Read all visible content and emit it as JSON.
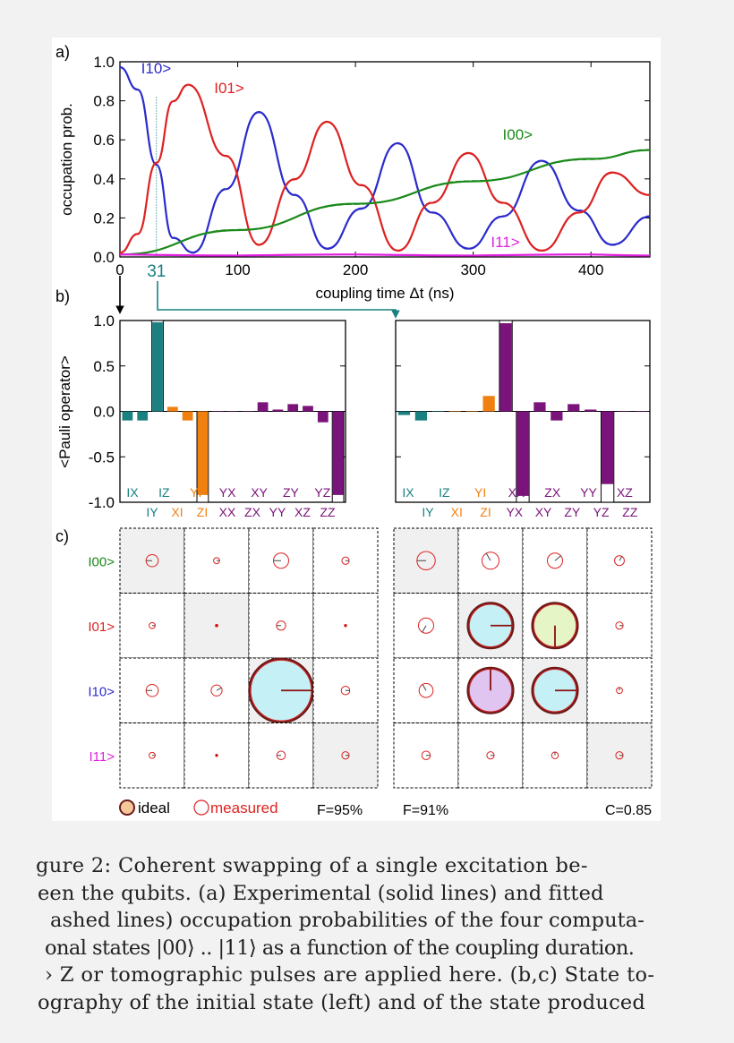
{
  "figure": {
    "panel_a": {
      "label": "a)",
      "chart_data": {
        "type": "line",
        "xlabel": "coupling time Δt (ns)",
        "ylabel": "occupation prob.",
        "xlim": [
          0,
          450
        ],
        "ylim": [
          0,
          1.0
        ],
        "xticks": [
          "0",
          "100",
          "200",
          "300",
          "400"
        ],
        "yticks": [
          "0.0",
          "0.2",
          "0.4",
          "0.6",
          "0.8",
          "1.0"
        ],
        "marker": {
          "x": 31,
          "label": "31"
        },
        "series": [
          {
            "name": "I10>",
            "color": "#2b2bcc",
            "style": "solid+dashed",
            "label_pos": [
              18,
              0.94
            ],
            "x": [
              0,
              15,
              31,
              45,
              62,
              90,
              118,
              148,
              176,
              205,
              236,
              265,
              296,
              325,
              358,
              390,
              418,
              450
            ],
            "y": [
              0.97,
              0.86,
              0.47,
              0.1,
              0.02,
              0.35,
              0.74,
              0.32,
              0.04,
              0.25,
              0.58,
              0.23,
              0.04,
              0.21,
              0.49,
              0.24,
              0.06,
              0.21
            ]
          },
          {
            "name": "I01>",
            "color": "#dd2222",
            "style": "solid+dashed",
            "label_pos": [
              80,
              0.84
            ],
            "x": [
              0,
              15,
              31,
              45,
              58,
              90,
              118,
              148,
              176,
              205,
              236,
              265,
              296,
              325,
              358,
              390,
              418,
              450
            ],
            "y": [
              0.02,
              0.12,
              0.48,
              0.8,
              0.88,
              0.52,
              0.06,
              0.4,
              0.69,
              0.37,
              0.03,
              0.28,
              0.53,
              0.28,
              0.03,
              0.23,
              0.43,
              0.32
            ]
          },
          {
            "name": "I00>",
            "color": "#1a8a1a",
            "style": "solid+dashed",
            "label_pos": [
              325,
              0.6
            ],
            "x": [
              0,
              100,
              200,
              300,
              400,
              450
            ],
            "y": [
              0.01,
              0.14,
              0.27,
              0.39,
              0.5,
              0.55
            ]
          },
          {
            "name": "I11>",
            "color": "#e020e0",
            "style": "solid",
            "label_pos": [
              315,
              0.05
            ],
            "x": [
              0,
              100,
              200,
              300,
              400,
              450
            ],
            "y": [
              0.01,
              0.01,
              0.01,
              0.01,
              0.01,
              0.01
            ]
          }
        ]
      }
    },
    "panel_b": {
      "label": "b)",
      "chart_data": [
        {
          "type": "bar",
          "ylabel": "<Pauli operator>",
          "ylim": [
            -1.0,
            1.0
          ],
          "yticks": [
            "1.0",
            "0.5",
            "0.0",
            "-0.5",
            "-1.0"
          ],
          "categories": [
            "IX",
            "IY",
            "IZ",
            "XI",
            "YI",
            "ZI",
            "XX",
            "XY",
            "XZ",
            "YX",
            "YY",
            "YZ",
            "ZX",
            "ZY",
            "ZZ"
          ],
          "values": [
            -0.1,
            -0.1,
            0.98,
            0.05,
            -0.1,
            -0.92,
            0.0,
            0.0,
            0.0,
            0.1,
            0.02,
            0.08,
            0.06,
            -0.12,
            -0.92
          ],
          "ideal": [
            0,
            0,
            1,
            0,
            0,
            -1,
            0,
            0,
            0,
            0,
            0,
            0,
            0,
            0,
            -1
          ],
          "colors": [
            "#1a8080",
            "#1a8080",
            "#1a8080",
            "#f08010",
            "#f08010",
            "#f08010",
            "#7a137a",
            "#7a137a",
            "#7a137a",
            "#7a137a",
            "#7a137a",
            "#7a137a",
            "#7a137a",
            "#7a137a",
            "#7a137a"
          ]
        },
        {
          "type": "bar",
          "ylim": [
            -1.0,
            1.0
          ],
          "categories": [
            "IX",
            "IY",
            "IZ",
            "XI",
            "YI",
            "ZI",
            "XX",
            "XY",
            "XZ",
            "YX",
            "YY",
            "YZ",
            "ZX",
            "ZY",
            "ZZ"
          ],
          "values": [
            -0.04,
            -0.1,
            0.0,
            0.0,
            0.0,
            0.17,
            0.97,
            -0.93,
            0.1,
            -0.1,
            0.08,
            0.02,
            -0.8,
            0,
            0
          ],
          "ideal": [
            0,
            0,
            0,
            0,
            0,
            0,
            1,
            -1,
            0,
            0,
            0,
            0,
            -1,
            0,
            0
          ],
          "colors": [
            "#1a8080",
            "#1a8080",
            "#1a8080",
            "#f08010",
            "#f08010",
            "#f08010",
            "#7a137a",
            "#7a137a",
            "#7a137a",
            "#7a137a",
            "#7a137a",
            "#7a137a",
            "#7a137a",
            "#7a137a",
            "#7a137a"
          ]
        }
      ],
      "tick_rows": {
        "left": {
          "upper": [
            [
              "IX",
              "#1a8080"
            ],
            [
              "IZ",
              "#1a8080"
            ],
            [
              "YI",
              "#f08010"
            ],
            [
              "YX",
              "#7a137a"
            ],
            [
              "XY",
              "#7a137a"
            ],
            [
              "ZY",
              "#7a137a"
            ],
            [
              "YZ",
              "#7a137a"
            ]
          ],
          "lower": [
            [
              "IY",
              "#1a8080"
            ],
            [
              "XI",
              "#f08010"
            ],
            [
              "ZI",
              "#f08010"
            ],
            [
              "XX",
              "#7a137a"
            ],
            [
              "ZX",
              "#7a137a"
            ],
            [
              "YY",
              "#7a137a"
            ],
            [
              "XZ",
              "#7a137a"
            ],
            [
              "ZZ",
              "#7a137a"
            ]
          ]
        },
        "right": {
          "upper": [
            [
              "IX",
              "#1a8080"
            ],
            [
              "IZ",
              "#1a8080"
            ],
            [
              "YI",
              "#f08010"
            ],
            [
              "XX",
              "#7a137a"
            ],
            [
              "ZX",
              "#7a137a"
            ],
            [
              "YY",
              "#7a137a"
            ],
            [
              "XZ",
              "#7a137a"
            ]
          ],
          "lower": [
            [
              "IY",
              "#1a8080"
            ],
            [
              "XI",
              "#f08010"
            ],
            [
              "ZI",
              "#f08010"
            ],
            [
              "YX",
              "#7a137a"
            ],
            [
              "XY",
              "#7a137a"
            ],
            [
              "ZY",
              "#7a137a"
            ],
            [
              "YZ",
              "#7a137a"
            ],
            [
              "ZZ",
              "#7a137a"
            ]
          ]
        }
      }
    },
    "panel_c": {
      "label": "c)",
      "row_labels": [
        {
          "text": "I00>",
          "color": "#1a8a1a"
        },
        {
          "text": "I01>",
          "color": "#dd2222"
        },
        {
          "text": "I10>",
          "color": "#2b2bcc"
        },
        {
          "text": "I11>",
          "color": "#e020e0"
        }
      ],
      "legend": {
        "ideal": "ideal",
        "measured": "measured"
      },
      "fidelity_left": "F=95%",
      "fidelity_right": "F=91%",
      "concurrence": "C=0.85",
      "left_matrix": [
        [
          [
            0.2,
            180
          ],
          [
            0.1,
            0
          ],
          [
            0.25,
            180
          ],
          [
            0.12,
            0
          ]
        ],
        [
          [
            0.1,
            0
          ],
          [
            0.04,
            0
          ],
          [
            0.15,
            180
          ],
          [
            0.03,
            0
          ]
        ],
        [
          [
            0.2,
            180
          ],
          [
            0.18,
            30
          ],
          [
            1.0,
            0
          ],
          [
            0.14,
            0
          ]
        ],
        [
          [
            0.1,
            0
          ],
          [
            0.03,
            0
          ],
          [
            0.14,
            180
          ],
          [
            0.12,
            0
          ]
        ]
      ],
      "left_fill": [
        [
          null,
          null,
          null,
          null
        ],
        [
          null,
          null,
          null,
          null
        ],
        [
          null,
          null,
          "#c5f0f5",
          null
        ],
        [
          null,
          null,
          null,
          null
        ]
      ],
      "right_matrix": [
        [
          [
            0.3,
            180
          ],
          [
            0.28,
            120
          ],
          [
            0.25,
            40
          ],
          [
            0.16,
            60
          ]
        ],
        [
          [
            0.25,
            240
          ],
          [
            0.7,
            0
          ],
          [
            0.7,
            270
          ],
          [
            0.12,
            0
          ]
        ],
        [
          [
            0.23,
            120
          ],
          [
            0.7,
            90
          ],
          [
            0.7,
            0
          ],
          [
            0.1,
            90
          ]
        ],
        [
          [
            0.14,
            0
          ],
          [
            0.12,
            0
          ],
          [
            0.11,
            90
          ],
          [
            0.12,
            0
          ]
        ]
      ],
      "right_fill": [
        [
          null,
          null,
          null,
          null
        ],
        [
          null,
          "#c5f0f5",
          "#e5f5c5",
          null
        ],
        [
          null,
          "#e0c5f0",
          "#c5f0f5",
          null
        ],
        [
          null,
          null,
          null,
          null
        ]
      ]
    }
  },
  "caption": {
    "lines": [
      "gure 2:  Coherent swapping of a single excitation be-",
      "een the qubits.  (a) Experimental (solid lines) and fitted",
      "ashed lines) occupation probabilities of the four computa-",
      "onal states |00⟩ .. |11⟩ as a function of the coupling duration.",
      "› Z or tomographic pulses are applied here.  (b,c) State to-",
      "ography of the initial state (left) and of the state produced"
    ]
  }
}
